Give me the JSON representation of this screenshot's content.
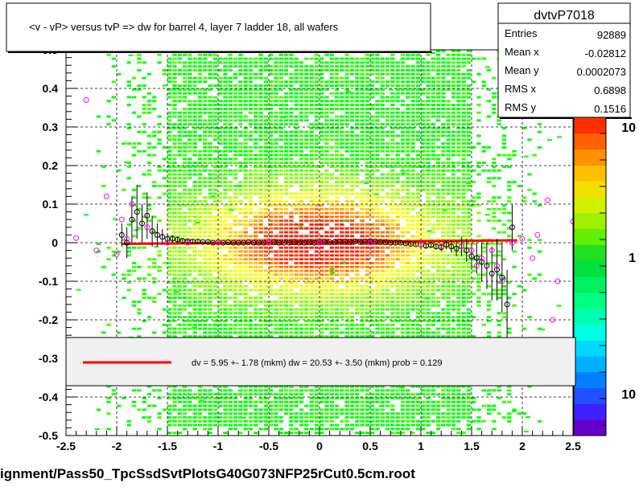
{
  "title": "<v - vP>       versus  tvP =>  dw for barrel 4, layer 7 ladder 18, all wafers",
  "footer": "ignment/Pass50_TpcSsdSvtPlotsG40G073NFP25rCut0.5cm.root",
  "stats": {
    "name": "dvtvP7018",
    "rows": [
      {
        "label": "Entries",
        "value": "92889"
      },
      {
        "label": "Mean x",
        "value": "-0.02812"
      },
      {
        "label": "Mean y",
        "value": "0.0002073"
      },
      {
        "label": "RMS x",
        "value": "0.6898"
      },
      {
        "label": "RMS y",
        "value": "0.1516"
      }
    ]
  },
  "legend": {
    "text": "dv =    5.95 +-  1.78 (mkm) dw =   20.53 +-  3.50 (mkm) prob = 0.129",
    "line_color": "#ff0000"
  },
  "colorbar": {
    "labels": [
      "10",
      "1",
      "10"
    ],
    "colors": [
      "#6600cc",
      "#4020ff",
      "#2050ff",
      "#0080ff",
      "#00b0ff",
      "#00d8ff",
      "#00ffe0",
      "#00ffb0",
      "#00ff80",
      "#00f060",
      "#00e040",
      "#20e020",
      "#60f000",
      "#a0f000",
      "#d0f000",
      "#f0e000",
      "#ffc000",
      "#ff9000",
      "#ff6000",
      "#ff3000"
    ]
  },
  "chart_data": {
    "type": "heatmap",
    "title": "<v - vP>       versus  tvP =>  dw for barrel 4, layer 7 ladder 18, all wafers",
    "xlim": [
      -2.5,
      2.5
    ],
    "ylim": [
      -0.5,
      0.5
    ],
    "x_ticks": [
      "-2.5",
      "-2",
      "-1.5",
      "-1",
      "-0.5",
      "0",
      "0.5",
      "1",
      "1.5",
      "2",
      "2.5"
    ],
    "y_ticks": [
      "-0.5",
      "-0.4",
      "-0.3",
      "-0.2",
      "-0.1",
      "0",
      "0.1",
      "0.2",
      "0.3",
      "0.4",
      "0.5"
    ],
    "grid": true,
    "fit_line": {
      "x": [
        -1.95,
        1.95
      ],
      "y": [
        -0.003,
        0.006
      ],
      "color": "#ff0000"
    },
    "profile_black": {
      "x": [
        -1.95,
        -1.9,
        -1.85,
        -1.8,
        -1.75,
        -1.7,
        -1.65,
        -1.6,
        -1.55,
        -1.5,
        -1.45,
        -1.4,
        -1.35,
        -1.3,
        -1.25,
        -1.2,
        -1.15,
        -1.1,
        -1.05,
        -1.0,
        -0.95,
        -0.9,
        -0.85,
        -0.8,
        -0.75,
        -0.7,
        -0.65,
        -0.6,
        -0.55,
        -0.5,
        -0.45,
        -0.4,
        -0.35,
        -0.3,
        -0.25,
        -0.2,
        -0.15,
        -0.1,
        -0.05,
        0.0,
        0.05,
        0.1,
        0.15,
        0.2,
        0.25,
        0.3,
        0.35,
        0.4,
        0.45,
        0.5,
        0.55,
        0.6,
        0.65,
        0.7,
        0.75,
        0.8,
        0.85,
        0.9,
        0.95,
        1.0,
        1.05,
        1.1,
        1.15,
        1.2,
        1.25,
        1.3,
        1.35,
        1.4,
        1.45,
        1.5,
        1.55,
        1.6,
        1.65,
        1.7,
        1.75,
        1.8,
        1.85,
        1.9
      ],
      "y": [
        0.02,
        0.0,
        0.06,
        0.08,
        0.05,
        0.07,
        0.03,
        0.02,
        0.015,
        0.01,
        0.01,
        0.008,
        0.005,
        0.004,
        0.003,
        0.003,
        0.002,
        0.002,
        0.0,
        0.001,
        0.0,
        0.001,
        0.0,
        0.0,
        0.0,
        0.001,
        0.0,
        0.0,
        0.0,
        0.0,
        0.001,
        0.0,
        0.0,
        0.0,
        0.001,
        0.0,
        0.0,
        0.001,
        0.0,
        0.001,
        0.002,
        0.002,
        0.002,
        0.003,
        0.003,
        0.002,
        0.003,
        0.002,
        0.003,
        0.004,
        0.003,
        0.002,
        0.001,
        0.0,
        0.0,
        0.0,
        -0.002,
        -0.003,
        -0.004,
        -0.005,
        -0.008,
        -0.006,
        -0.01,
        -0.012,
        -0.005,
        -0.01,
        -0.015,
        -0.01,
        -0.02,
        -0.035,
        -0.04,
        -0.05,
        -0.06,
        -0.08,
        -0.07,
        -0.09,
        -0.16,
        0.04
      ],
      "yerr": [
        0.03,
        0.04,
        0.06,
        0.07,
        0.05,
        0.06,
        0.04,
        0.03,
        0.02,
        0.015,
        0.01,
        0.008,
        0.006,
        0.005,
        0.004,
        0.004,
        0.003,
        0.003,
        0.003,
        0.003,
        0.002,
        0.002,
        0.002,
        0.002,
        0.002,
        0.002,
        0.002,
        0.002,
        0.002,
        0.002,
        0.002,
        0.002,
        0.002,
        0.002,
        0.002,
        0.002,
        0.002,
        0.002,
        0.002,
        0.002,
        0.002,
        0.002,
        0.002,
        0.002,
        0.002,
        0.002,
        0.002,
        0.002,
        0.002,
        0.002,
        0.002,
        0.002,
        0.003,
        0.003,
        0.003,
        0.003,
        0.003,
        0.004,
        0.004,
        0.005,
        0.006,
        0.007,
        0.008,
        0.01,
        0.012,
        0.015,
        0.02,
        0.025,
        0.03,
        0.035,
        0.04,
        0.05,
        0.06,
        0.07,
        0.08,
        0.09,
        0.09,
        0.06
      ]
    },
    "profile_magenta": {
      "x": [
        -2.4,
        -2.3,
        -2.2,
        -2.1,
        -2.0,
        -1.95,
        -1.9,
        -1.85,
        -1.7,
        -1.5,
        -1.3,
        -1.0,
        -0.5,
        0.0,
        0.5,
        1.0,
        1.2,
        1.4,
        1.5,
        1.55,
        1.6,
        1.7,
        1.75,
        1.8,
        1.9,
        2.0,
        2.1,
        2.15,
        2.25,
        2.3,
        2.35,
        2.5
      ],
      "y": [
        0.012,
        0.37,
        -0.02,
        0.12,
        -0.03,
        0.06,
        0.01,
        0.1,
        0.04,
        0.0,
        0.0,
        0.0,
        0.0,
        0.0,
        0.0,
        -0.005,
        -0.01,
        -0.01,
        -0.02,
        -0.06,
        -0.04,
        -0.02,
        -0.06,
        -0.1,
        0.0,
        0.01,
        -0.04,
        0.02,
        0.11,
        -0.2,
        -0.1,
        0.055
      ]
    },
    "colorbar_labels": [
      "10",
      "1",
      "10"
    ]
  }
}
